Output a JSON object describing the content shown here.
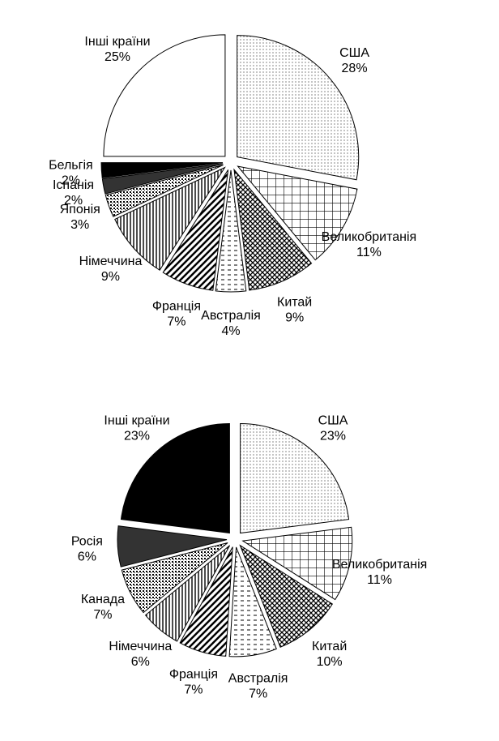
{
  "chart_data": [
    {
      "type": "pie",
      "categories": [
        "США",
        "Великобританія",
        "Китай",
        "Австралія",
        "Франція",
        "Німеччина",
        "Японія",
        "Іспанія",
        "Бельгія",
        "Інші країни"
      ],
      "values": [
        28,
        11,
        9,
        4,
        7,
        9,
        3,
        2,
        2,
        25
      ],
      "value_labels": [
        "28%",
        "11%",
        "9%",
        "4%",
        "7%",
        "9%",
        "3%",
        "2%",
        "2%",
        "25%"
      ]
    },
    {
      "type": "pie",
      "categories": [
        "США",
        "Великобританія",
        "Китай",
        "Австралія",
        "Франція",
        "Німеччина",
        "Канада",
        "Росія",
        "Інші країни"
      ],
      "values": [
        23,
        11,
        10,
        7,
        7,
        6,
        7,
        6,
        23
      ],
      "value_labels": [
        "23%",
        "11%",
        "10%",
        "7%",
        "7%",
        "6%",
        "7%",
        "6%",
        "23%"
      ]
    }
  ]
}
